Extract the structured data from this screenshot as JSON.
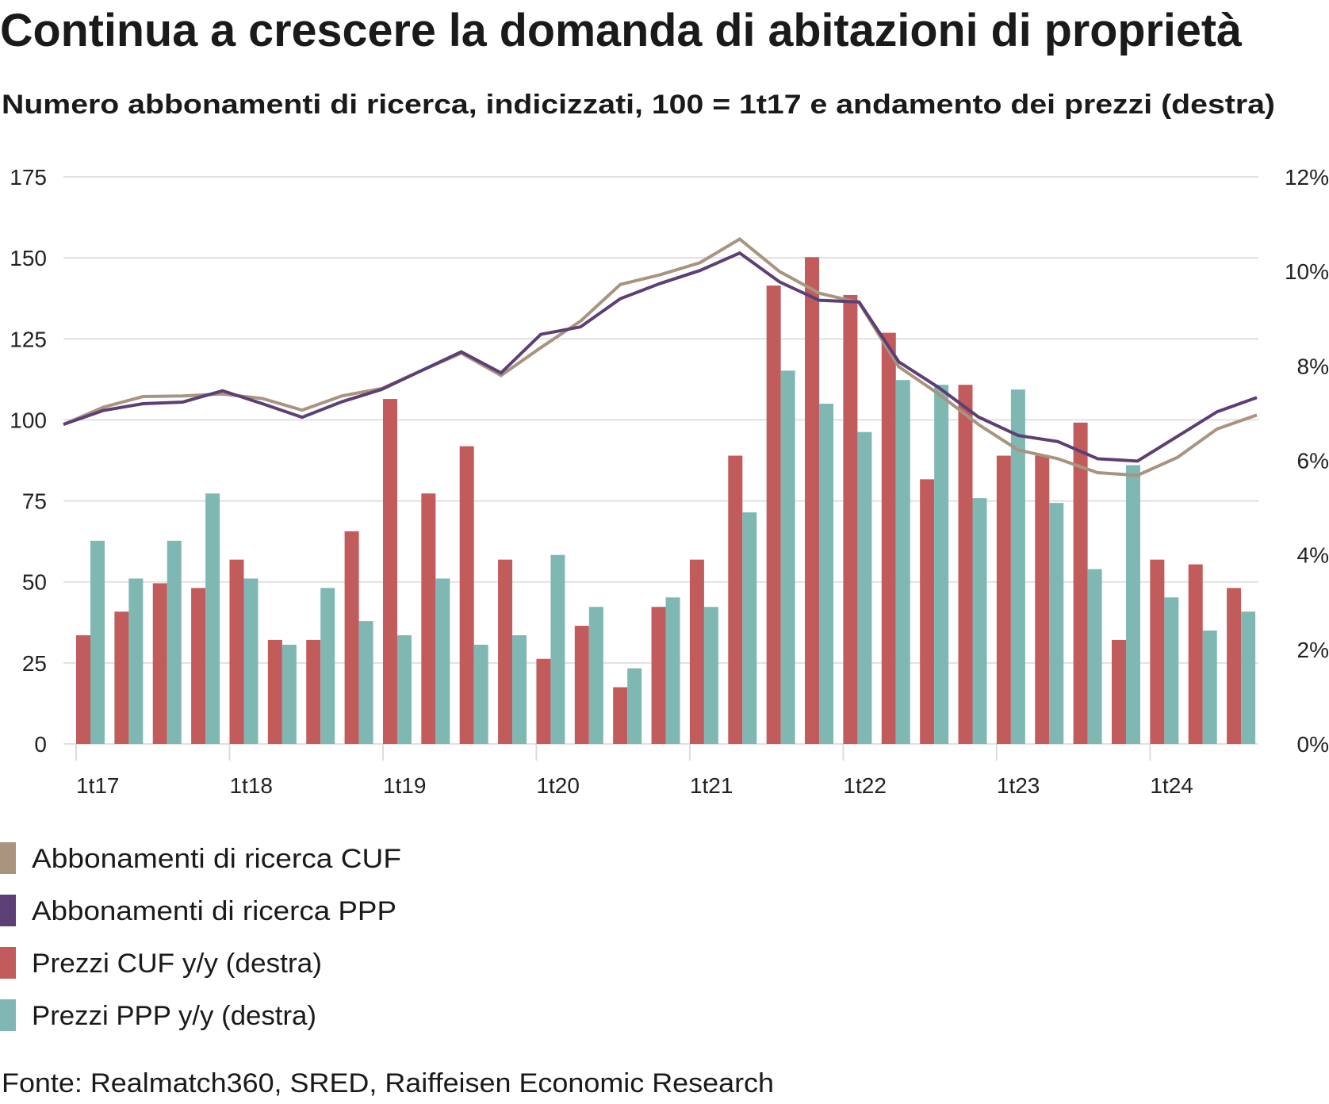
{
  "header": {
    "title": "Continua a crescere la domanda di abitazioni di proprietà",
    "subtitle": "Numero abbonamenti di ricerca, indicizzati, 100 = 1t17 e andamento dei prezzi (destra)"
  },
  "footer": {
    "source": "Fonte: Realmatch360, SRED, Raiffeisen Economic Research"
  },
  "legend": [
    {
      "label": "Abbonamenti di ricerca CUF",
      "color": "#A8947F"
    },
    {
      "label": "Abbonamenti di ricerca PPP",
      "color": "#5C3F74"
    },
    {
      "label": "Prezzi CUF y/y (destra)",
      "color": "#C25B5C"
    },
    {
      "label": "Prezzi PPP y/y (destra)",
      "color": "#7FB8B3"
    }
  ],
  "chart_data": {
    "type": "bar+line",
    "title": "Continua a crescere la domanda di abitazioni di proprietà",
    "subtitle": "Numero abbonamenti di ricerca, indicizzati, 100 = 1t17 e andamento dei prezzi (destra)",
    "xlabel": "",
    "ylabel_left": "",
    "ylabel_right": "",
    "categories": [
      "1t17",
      "2t17",
      "3t17",
      "4t17",
      "1t18",
      "2t18",
      "3t18",
      "4t18",
      "1t19",
      "2t19",
      "3t19",
      "4t19",
      "1t20",
      "2t20",
      "3t20",
      "4t20",
      "1t21",
      "2t21",
      "3t21",
      "4t21",
      "1t22",
      "2t22",
      "3t22",
      "4t22",
      "1t23",
      "2t23",
      "3t23",
      "4t23",
      "1t24",
      "2t24",
      "3t24"
    ],
    "x_tick_labels": [
      "1t17",
      "1t18",
      "1t19",
      "1t20",
      "1t21",
      "1t22",
      "1t23",
      "1t24"
    ],
    "y_left": {
      "range": [
        0,
        175
      ],
      "ticks": [
        0,
        25,
        50,
        75,
        100,
        125,
        150,
        175
      ],
      "tick_labels": [
        "0",
        "25",
        "50",
        "75",
        "100",
        "125",
        "150",
        "175"
      ]
    },
    "y_right": {
      "range": [
        0,
        12
      ],
      "ticks": [
        0,
        2,
        4,
        6,
        8,
        10,
        12
      ],
      "tick_labels": [
        "0%",
        "2%",
        "4%",
        "6%",
        "8%",
        "10%",
        "12%"
      ]
    },
    "grid": true,
    "legend_position": "bottom",
    "series": [
      {
        "name": "Abbonamenti di ricerca CUF",
        "type": "line",
        "axis": "left",
        "color": "#A8947F",
        "values": [
          98.6,
          103.9,
          107.2,
          107.4,
          108.0,
          106.6,
          103.0,
          107.4,
          109.7,
          115.2,
          120.6,
          113.7,
          122.3,
          130.5,
          141.8,
          144.8,
          148.5,
          155.8,
          145.8,
          139.1,
          136.2,
          116.4,
          108.0,
          98.6,
          90.7,
          88.0,
          83.7,
          82.9,
          88.4,
          97.2,
          101.5
        ]
      },
      {
        "name": "Abbonamenti di ricerca PPP",
        "type": "line",
        "axis": "left",
        "color": "#5C3F74",
        "values": [
          98.6,
          102.9,
          105.0,
          105.5,
          109.0,
          105.0,
          100.8,
          105.6,
          109.4,
          115.2,
          121.0,
          114.5,
          126.4,
          128.7,
          137.4,
          142.1,
          146.1,
          151.5,
          142.6,
          136.9,
          136.4,
          117.9,
          110.0,
          100.9,
          95.2,
          93.3,
          88.0,
          87.3,
          94.9,
          102.5,
          106.9
        ]
      },
      {
        "name": "Prezzi CUF y/y (destra)",
        "type": "bar",
        "axis": "right",
        "unit": "%",
        "color": "#C25B5C",
        "values": [
          2.3,
          2.8,
          3.4,
          3.3,
          3.9,
          2.2,
          2.2,
          4.5,
          7.3,
          5.3,
          6.3,
          3.9,
          1.8,
          2.5,
          1.2,
          2.9,
          3.9,
          6.1,
          9.7,
          10.3,
          9.5,
          8.7,
          5.6,
          7.6,
          6.1,
          6.1,
          6.8,
          2.2,
          3.9,
          3.8,
          3.3
        ]
      },
      {
        "name": "Prezzi PPP y/y (destra)",
        "type": "bar",
        "axis": "right",
        "unit": "%",
        "color": "#7FB8B3",
        "values": [
          4.3,
          3.5,
          4.3,
          5.3,
          3.5,
          2.1,
          3.3,
          2.6,
          2.3,
          3.5,
          2.1,
          2.3,
          4.0,
          2.9,
          1.6,
          3.1,
          2.9,
          4.9,
          7.9,
          7.2,
          6.6,
          7.7,
          7.6,
          5.2,
          7.5,
          5.1,
          3.7,
          5.9,
          3.1,
          2.4,
          2.8
        ]
      }
    ]
  }
}
